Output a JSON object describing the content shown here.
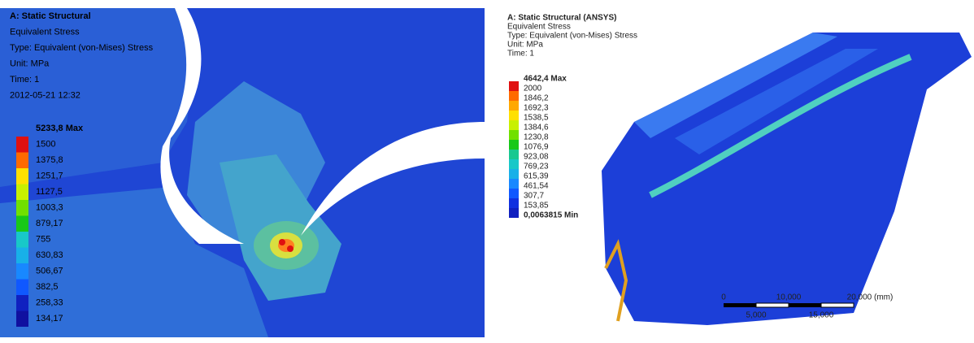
{
  "left_panel": {
    "header": [
      "A: Static Structural",
      "Equivalent Stress",
      "Type: Equivalent (von-Mises) Stress",
      "Unit: MPa",
      "Time: 1",
      "2012-05-21 12:32"
    ],
    "legend": [
      "5233,8 Max",
      "1500",
      "1375,8",
      "1251,7",
      "1127,5",
      "1003,3",
      "879,17",
      "755",
      "630,83",
      "506,67",
      "382,5",
      "258,33",
      "134,17"
    ]
  },
  "right_panel": {
    "header": [
      "A: Static Structural (ANSYS)",
      "Equivalent Stress",
      "Type: Equivalent (von-Mises) Stress",
      "Unit: MPa",
      "Time: 1"
    ],
    "legend": [
      "4642,4 Max",
      "2000",
      "1846,2",
      "1692,3",
      "1538,5",
      "1384,6",
      "1230,8",
      "1076,9",
      "923,08",
      "769,23",
      "615,39",
      "461,54",
      "307,7",
      "153,85",
      "0,0063815 Min"
    ],
    "scale_bar": {
      "top": [
        "0",
        "10,000",
        "20,000 (mm)"
      ],
      "bottom": [
        "5,000",
        "15,000"
      ]
    }
  }
}
